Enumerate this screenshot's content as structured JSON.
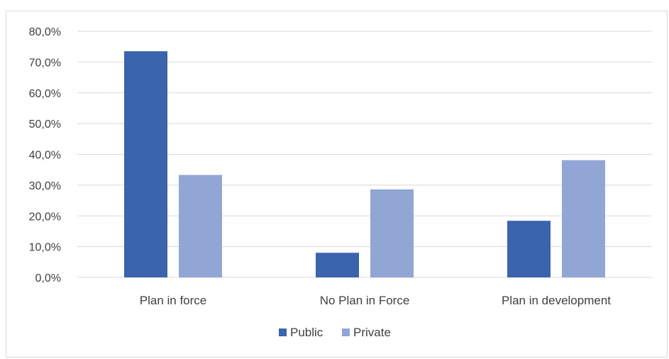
{
  "title": "",
  "chart_data": {
    "type": "bar",
    "categories": [
      "Plan in force",
      "No Plan in Force",
      "Plan in development"
    ],
    "series": [
      {
        "name": "Public",
        "values": [
          73.5,
          8.0,
          18.4
        ],
        "color": "#3a64ac"
      },
      {
        "name": "Private",
        "values": [
          33.3,
          28.6,
          38.1
        ],
        "color": "#92a6d6"
      }
    ],
    "y_ticks": [
      "0,0%",
      "10,0%",
      "20,0%",
      "30,0%",
      "40,0%",
      "50,0%",
      "60,0%",
      "70,0%",
      "80,0%"
    ],
    "ylim": [
      0,
      80
    ],
    "grid": true,
    "legend_position": "bottom",
    "gridline_color": "#d9d9d9",
    "text_color": "#404040"
  }
}
